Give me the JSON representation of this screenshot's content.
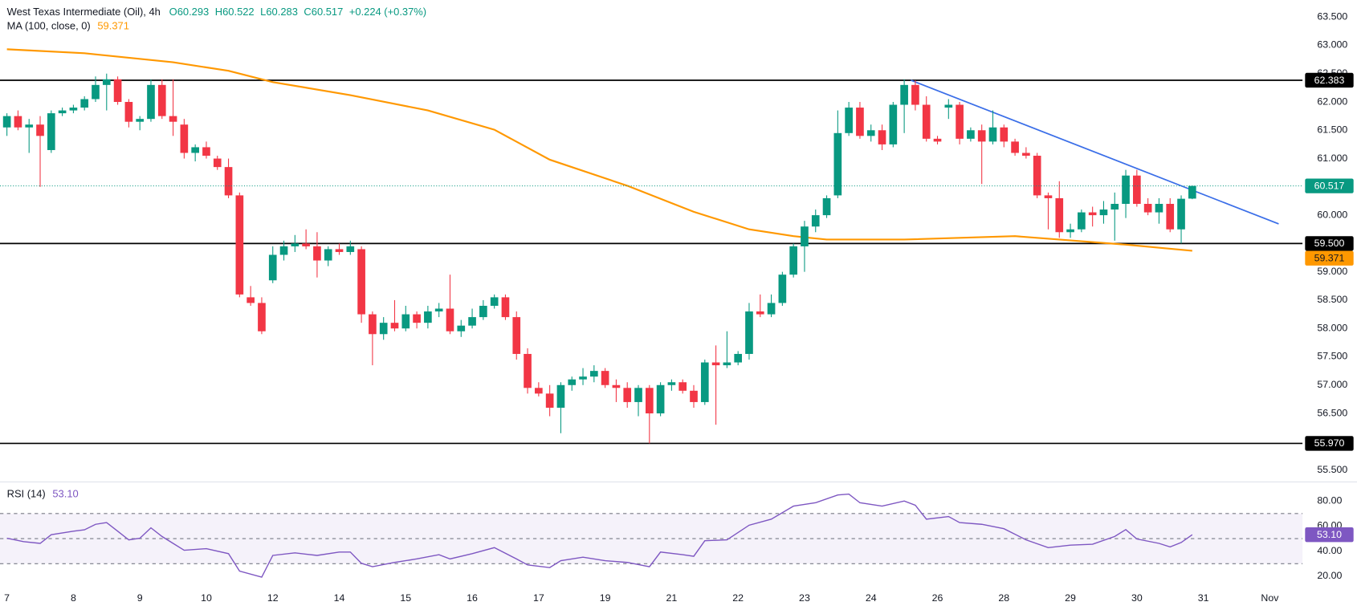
{
  "chart_data": [
    {
      "type": "candlestick",
      "title": "West Texas Intermediate (Oil), 4h",
      "header_values": [
        "O60.293",
        "H60.522",
        "L60.283",
        "C60.517",
        "+0.224 (+0.37%)"
      ],
      "up_color": "#089981",
      "down_color": "#f23645",
      "open": [
        61.55,
        61.75,
        61.55,
        61.6,
        61.15,
        61.8,
        61.85,
        61.9,
        62.05,
        62.3,
        62.4,
        62.0,
        61.65,
        61.7,
        62.3,
        61.75,
        61.6,
        61.1,
        61.2,
        61.0,
        60.85,
        60.35,
        58.55,
        58.45,
        58.85,
        59.3,
        59.45,
        59.5,
        59.45,
        59.2,
        59.4,
        59.35,
        59.4,
        58.25,
        57.9,
        58.1,
        58.0,
        58.25,
        58.1,
        58.3,
        58.35,
        57.95,
        58.05,
        58.2,
        58.4,
        58.55,
        58.2,
        57.55,
        56.95,
        56.85,
        56.6,
        57.0,
        57.1,
        57.15,
        57.25,
        57.0,
        56.95,
        56.7,
        56.95,
        56.5,
        57.0,
        57.05,
        56.9,
        56.7,
        57.4,
        57.35,
        57.4,
        57.55,
        58.3,
        58.25,
        58.45,
        58.95,
        59.45,
        59.8,
        60.0,
        60.35,
        61.45,
        61.9,
        61.4,
        61.5,
        61.25,
        61.95,
        62.3,
        61.95,
        61.35,
        61.9,
        61.95,
        61.35,
        61.5,
        61.3,
        61.55,
        61.3,
        61.1,
        61.05,
        60.35,
        60.3,
        59.7,
        59.75,
        60.05,
        60.0,
        60.1,
        60.2,
        60.7,
        60.2,
        60.05,
        60.2,
        59.75,
        60.293
      ],
      "high": [
        61.8,
        61.85,
        61.7,
        61.75,
        61.85,
        61.9,
        61.95,
        62.1,
        62.45,
        62.5,
        62.45,
        62.05,
        61.75,
        62.4,
        62.4,
        62.4,
        61.7,
        61.25,
        61.3,
        61.05,
        61.0,
        60.4,
        58.75,
        58.55,
        59.45,
        59.55,
        59.65,
        59.75,
        59.7,
        59.45,
        59.5,
        59.55,
        59.45,
        58.3,
        58.2,
        58.5,
        58.4,
        58.3,
        58.4,
        58.45,
        58.95,
        58.15,
        58.35,
        58.5,
        58.6,
        58.6,
        58.3,
        57.65,
        57.05,
        57.0,
        57.05,
        57.15,
        57.3,
        57.35,
        57.3,
        57.1,
        57.05,
        57.0,
        57.0,
        57.05,
        57.1,
        57.1,
        57.0,
        57.45,
        57.7,
        57.95,
        57.6,
        58.45,
        58.6,
        58.6,
        59.0,
        59.5,
        59.9,
        60.1,
        60.35,
        61.85,
        62.0,
        62.0,
        61.6,
        61.6,
        62.0,
        62.4,
        62.383,
        62.1,
        61.4,
        62.05,
        62.0,
        61.55,
        61.6,
        61.85,
        61.6,
        61.35,
        61.2,
        61.1,
        60.4,
        60.6,
        59.85,
        60.1,
        60.15,
        60.25,
        60.4,
        60.8,
        60.8,
        60.3,
        60.3,
        60.3,
        60.35,
        60.522
      ],
      "low": [
        61.4,
        61.5,
        61.1,
        60.5,
        61.1,
        61.75,
        61.8,
        61.85,
        62.0,
        61.85,
        61.95,
        61.55,
        61.5,
        61.65,
        61.7,
        61.4,
        61.0,
        60.95,
        61.0,
        60.8,
        60.3,
        58.55,
        58.4,
        57.9,
        58.8,
        59.2,
        59.35,
        59.4,
        58.9,
        59.1,
        59.3,
        59.3,
        58.1,
        57.35,
        57.8,
        57.95,
        57.95,
        58.0,
        58.0,
        58.2,
        57.9,
        57.85,
        58.0,
        58.15,
        58.35,
        58.15,
        57.45,
        56.85,
        56.8,
        56.45,
        56.15,
        56.9,
        57.0,
        57.05,
        56.95,
        56.7,
        56.6,
        56.45,
        55.97,
        56.45,
        56.9,
        56.85,
        56.6,
        56.65,
        56.3,
        57.3,
        57.35,
        57.45,
        58.2,
        58.2,
        58.4,
        58.9,
        59.0,
        59.7,
        59.95,
        60.3,
        61.4,
        61.35,
        61.3,
        61.15,
        61.2,
        61.45,
        61.85,
        61.3,
        61.25,
        61.7,
        61.25,
        61.3,
        60.55,
        61.25,
        61.2,
        61.05,
        61.0,
        60.3,
        59.75,
        59.6,
        59.6,
        59.7,
        59.8,
        59.85,
        59.55,
        59.95,
        60.15,
        60.0,
        59.85,
        59.7,
        59.5,
        60.283
      ],
      "close": [
        61.75,
        61.55,
        61.6,
        61.4,
        61.8,
        61.85,
        61.9,
        62.05,
        62.3,
        62.4,
        62.0,
        61.65,
        61.7,
        62.3,
        61.75,
        61.65,
        61.1,
        61.2,
        61.05,
        60.85,
        60.35,
        58.6,
        58.45,
        57.95,
        59.3,
        59.45,
        59.5,
        59.45,
        59.2,
        59.4,
        59.35,
        59.45,
        58.25,
        57.9,
        58.1,
        58.0,
        58.25,
        58.1,
        58.3,
        58.35,
        57.95,
        58.05,
        58.2,
        58.4,
        58.55,
        58.2,
        57.55,
        56.95,
        56.85,
        56.6,
        57.0,
        57.1,
        57.15,
        57.25,
        57.0,
        56.95,
        56.7,
        56.95,
        56.5,
        57.0,
        57.05,
        56.9,
        56.7,
        57.4,
        57.35,
        57.4,
        57.55,
        58.3,
        58.25,
        58.45,
        58.95,
        59.45,
        59.8,
        60.0,
        60.3,
        61.45,
        61.9,
        61.4,
        61.5,
        61.25,
        61.95,
        62.3,
        61.95,
        61.35,
        61.3,
        61.95,
        61.35,
        61.5,
        61.3,
        61.55,
        61.3,
        61.1,
        61.05,
        60.35,
        60.3,
        59.7,
        59.75,
        60.05,
        60.0,
        60.1,
        60.2,
        60.7,
        60.2,
        60.05,
        60.2,
        59.75,
        60.29,
        60.517
      ],
      "xlim": [
        -0.625,
        116.95
      ],
      "xticks": [
        {
          "value": 0,
          "label": "7"
        },
        {
          "value": 6,
          "label": "8"
        },
        {
          "value": 12,
          "label": "9"
        },
        {
          "value": 18,
          "label": "10"
        },
        {
          "value": 24,
          "label": "12"
        },
        {
          "value": 30,
          "label": "14"
        },
        {
          "value": 36,
          "label": "15"
        },
        {
          "value": 42,
          "label": "16"
        },
        {
          "value": 48,
          "label": "17"
        },
        {
          "value": 54,
          "label": "19"
        },
        {
          "value": 60,
          "label": "21"
        },
        {
          "value": 66,
          "label": "22"
        },
        {
          "value": 72,
          "label": "23"
        },
        {
          "value": 78,
          "label": "24"
        },
        {
          "value": 84,
          "label": "26"
        },
        {
          "value": 90,
          "label": "28"
        },
        {
          "value": 96,
          "label": "29"
        },
        {
          "value": 102,
          "label": "30"
        },
        {
          "value": 108,
          "label": "31"
        },
        {
          "value": 114,
          "label": "Nov"
        }
      ],
      "ylim": [
        55.32,
        63.8
      ],
      "yticks": [
        {
          "value": 55.5,
          "label": "55.500"
        },
        {
          "value": 56,
          "label": "56.000"
        },
        {
          "value": 56.5,
          "label": "56.500"
        },
        {
          "value": 57,
          "label": "57.000"
        },
        {
          "value": 57.5,
          "label": "57.500"
        },
        {
          "value": 58,
          "label": "58.000"
        },
        {
          "value": 58.5,
          "label": "58.500"
        },
        {
          "value": 59,
          "label": "59.000"
        },
        {
          "value": 59.5,
          "label": "59.500"
        },
        {
          "value": 60,
          "label": "60.000"
        },
        {
          "value": 60.5,
          "label": "60.500"
        },
        {
          "value": 61,
          "label": "61.000"
        },
        {
          "value": 61.5,
          "label": "61.500"
        },
        {
          "value": 62,
          "label": "62.000"
        },
        {
          "value": 62.5,
          "label": "62.500"
        },
        {
          "value": 63,
          "label": "63.000"
        },
        {
          "value": 63.5,
          "label": "63.500"
        }
      ],
      "grid": false,
      "ma": {
        "name": "MA (100, close, 0)",
        "color": "#ff9800",
        "x": [
          0,
          7,
          15,
          20,
          24,
          31,
          38,
          44,
          49,
          56,
          62,
          67,
          71,
          74,
          81,
          91,
          97,
          101,
          107
        ],
        "values": [
          62.93,
          62.86,
          62.7,
          62.55,
          62.35,
          62.12,
          61.85,
          61.51,
          60.98,
          60.52,
          60.06,
          59.75,
          59.63,
          59.57,
          59.57,
          59.63,
          59.54,
          59.48,
          59.371
        ]
      },
      "levels": [
        62.383,
        {
          "value": 59.5,
          "label": "59.500"
        },
        {
          "value": 55.97,
          "label": "55.970"
        }
      ],
      "level_color": "#000000",
      "trendline": {
        "color": "#3a6ee8",
        "x": [
          81.6,
          114.8
        ],
        "values": [
          62.383,
          59.846
        ]
      }
    },
    {
      "type": "line",
      "name": "RSI (14)",
      "color": "#7e57c2",
      "value_label": "53.10",
      "x": [
        0,
        1.5,
        3,
        4,
        6,
        7,
        8,
        9,
        10,
        11,
        12,
        13,
        14,
        15,
        16,
        18,
        20,
        21,
        23,
        24,
        26,
        28,
        30,
        31,
        32,
        33,
        35,
        37,
        39,
        40,
        42,
        44,
        46,
        47,
        49,
        50,
        52,
        54,
        56,
        58,
        59,
        61,
        62,
        63,
        65,
        67,
        69,
        71,
        73,
        75,
        76,
        77,
        79,
        81,
        82,
        83,
        85,
        86,
        88,
        90,
        92,
        94,
        96,
        98,
        100,
        101,
        102,
        104,
        105,
        106,
        107
      ],
      "values": [
        50.3,
        47.6,
        46.2,
        53.1,
        55.9,
        57,
        61.4,
        62.8,
        55.9,
        49,
        50.3,
        58.6,
        51.7,
        46.2,
        40.7,
        42,
        38,
        24.1,
        19.3,
        36.6,
        38.6,
        36.6,
        39.3,
        39.3,
        30.3,
        27.6,
        31,
        33.8,
        37.2,
        33.8,
        38,
        42.8,
        33.8,
        29,
        26.9,
        32.4,
        35.2,
        32.4,
        31,
        27.6,
        39.3,
        37.2,
        35.9,
        48.3,
        49,
        60.7,
        65.5,
        75.9,
        78.6,
        84.8,
        85.5,
        78.6,
        75.9,
        80,
        76.6,
        65.5,
        67.6,
        62.8,
        61.4,
        57.9,
        49,
        42.8,
        44.8,
        45.5,
        51.7,
        57.2,
        49.7,
        46.2,
        43.4,
        46.9,
        53.1
      ],
      "ylim": [
        4.8,
        94.5
      ],
      "yticks": [
        {
          "value": 20,
          "label": "20.00"
        },
        {
          "value": 40,
          "label": "40.00"
        },
        {
          "value": 60,
          "label": "60.00"
        },
        {
          "value": 80,
          "label": "80.00"
        }
      ],
      "upper_band": 70,
      "middle_line": 50,
      "lower_band": 30
    }
  ]
}
